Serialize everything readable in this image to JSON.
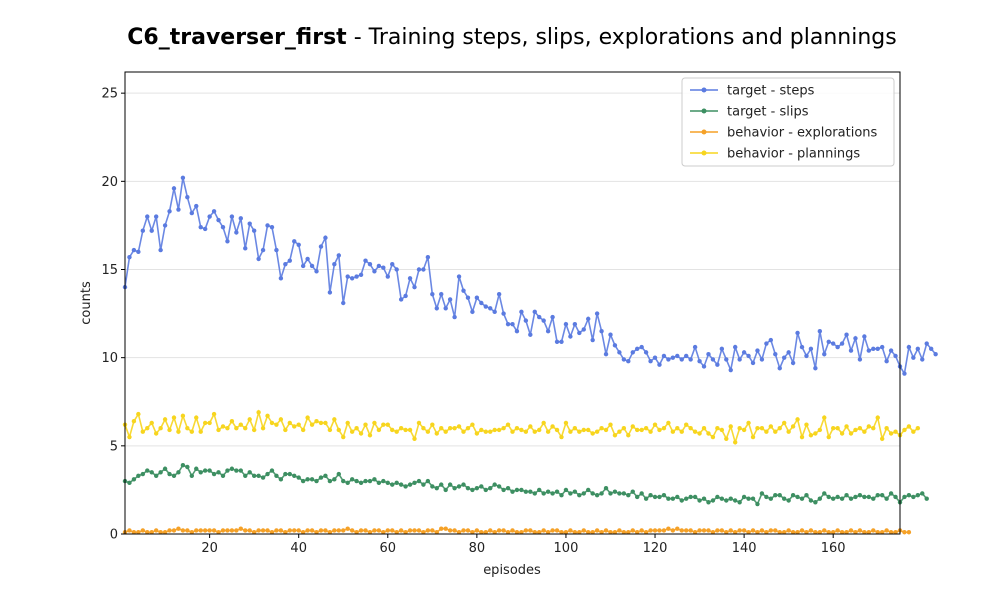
{
  "chart_data": {
    "type": "line",
    "title_bold": "C6_traverser_first",
    "title_rest": " - Training steps, slips, explorations and plannings",
    "xlabel": "episodes",
    "ylabel": "counts",
    "xlim": [
      1,
      175
    ],
    "ylim": [
      0,
      26.2
    ],
    "x_ticks": [
      20,
      40,
      60,
      80,
      100,
      120,
      140,
      160
    ],
    "y_ticks": [
      0,
      5,
      10,
      15,
      20,
      25
    ],
    "grid": "horizontal",
    "legend_position": "top-right",
    "series": [
      {
        "name": "target - steps",
        "color": "#5b7be0",
        "values": [
          14.0,
          15.7,
          16.1,
          16.0,
          17.2,
          18.0,
          17.2,
          18.0,
          16.1,
          17.5,
          18.3,
          19.6,
          18.4,
          20.2,
          19.1,
          18.2,
          18.6,
          17.4,
          17.3,
          18.0,
          18.3,
          17.8,
          17.4,
          16.6,
          18.0,
          17.1,
          17.9,
          16.2,
          17.6,
          17.2,
          15.6,
          16.1,
          17.5,
          17.4,
          16.1,
          14.5,
          15.3,
          15.5,
          16.6,
          16.4,
          15.2,
          15.6,
          15.2,
          14.9,
          16.3,
          16.8,
          13.7,
          15.3,
          15.8,
          13.1,
          14.6,
          14.5,
          14.6,
          14.7,
          15.5,
          15.3,
          14.9,
          15.2,
          15.1,
          14.6,
          15.3,
          15.0,
          13.3,
          13.5,
          14.5,
          14.0,
          15.0,
          15.0,
          15.7,
          13.6,
          12.8,
          13.6,
          12.8,
          13.3,
          12.3,
          14.6,
          13.8,
          13.4,
          12.6,
          13.4,
          13.1,
          12.9,
          12.8,
          12.6,
          13.6,
          12.5,
          11.9,
          11.9,
          11.5,
          12.6,
          12.1,
          11.3,
          12.6,
          12.3,
          12.1,
          11.5,
          12.3,
          10.9,
          10.9,
          11.9,
          11.2,
          11.9,
          11.4,
          11.6,
          12.2,
          11.0,
          12.5,
          11.5,
          10.2,
          11.3,
          10.7,
          10.3,
          9.9,
          9.8,
          10.3,
          10.5,
          10.6,
          10.3,
          9.8,
          10.0,
          9.6,
          10.1,
          9.9,
          10.0,
          10.1,
          9.9,
          10.1,
          9.9,
          10.6,
          9.8,
          9.5,
          10.2,
          9.9,
          9.6,
          10.5,
          9.9,
          9.3,
          10.6,
          9.9,
          10.3,
          10.1,
          9.7,
          10.4,
          9.9,
          10.8,
          11.0,
          10.2,
          9.4,
          10.0,
          10.3,
          9.7,
          11.4,
          10.6,
          10.1,
          10.5,
          9.4,
          11.5,
          10.2,
          10.9,
          10.8,
          10.6,
          10.8,
          11.3,
          10.4,
          11.1,
          9.9,
          11.2,
          10.4,
          10.5,
          10.5,
          10.6,
          9.8,
          10.4,
          10.1,
          9.5,
          9.1,
          10.6,
          10.0,
          10.5,
          9.9,
          10.8,
          10.5,
          10.2
        ]
      },
      {
        "name": "target - slips",
        "color": "#3d8f62",
        "values": [
          3.0,
          2.9,
          3.1,
          3.3,
          3.4,
          3.6,
          3.5,
          3.3,
          3.5,
          3.7,
          3.4,
          3.3,
          3.5,
          3.9,
          3.8,
          3.3,
          3.7,
          3.5,
          3.6,
          3.6,
          3.4,
          3.5,
          3.3,
          3.6,
          3.7,
          3.6,
          3.6,
          3.3,
          3.5,
          3.3,
          3.3,
          3.2,
          3.4,
          3.6,
          3.3,
          3.1,
          3.4,
          3.4,
          3.3,
          3.2,
          3.0,
          3.1,
          3.1,
          3.0,
          3.2,
          3.3,
          3.0,
          3.1,
          3.4,
          3.0,
          2.9,
          3.1,
          3.0,
          2.9,
          3.0,
          3.0,
          3.1,
          2.9,
          3.0,
          2.9,
          2.8,
          2.9,
          2.8,
          2.7,
          2.8,
          2.9,
          3.0,
          2.8,
          3.0,
          2.7,
          2.6,
          2.8,
          2.5,
          2.8,
          2.6,
          2.7,
          2.8,
          2.6,
          2.5,
          2.6,
          2.7,
          2.5,
          2.6,
          2.8,
          2.7,
          2.5,
          2.6,
          2.4,
          2.5,
          2.5,
          2.4,
          2.4,
          2.3,
          2.5,
          2.3,
          2.4,
          2.3,
          2.4,
          2.2,
          2.5,
          2.3,
          2.4,
          2.2,
          2.3,
          2.5,
          2.3,
          2.2,
          2.3,
          2.6,
          2.3,
          2.4,
          2.3,
          2.3,
          2.2,
          2.4,
          2.1,
          2.3,
          2.0,
          2.2,
          2.1,
          2.1,
          2.2,
          2.0,
          2.0,
          2.1,
          1.9,
          2.0,
          2.1,
          2.1,
          1.9,
          2.0,
          1.8,
          1.9,
          2.1,
          2.0,
          1.9,
          2.0,
          1.9,
          1.8,
          2.1,
          2.0,
          2.0,
          1.7,
          2.3,
          2.1,
          2.0,
          2.2,
          2.2,
          2.0,
          1.9,
          2.2,
          2.1,
          2.0,
          2.2,
          1.9,
          1.8,
          2.0,
          2.3,
          2.1,
          2.0,
          2.1,
          2.0,
          2.2,
          2.0,
          2.1,
          2.2,
          2.1,
          2.1,
          2.0,
          2.2,
          2.2,
          2.0,
          2.3,
          2.1,
          1.8,
          2.1,
          2.2,
          2.1,
          2.2,
          2.3,
          2.0
        ]
      },
      {
        "name": "behavior - explorations",
        "color": "#f5a127",
        "values": [
          0.1,
          0.2,
          0.1,
          0.1,
          0.2,
          0.1,
          0.1,
          0.2,
          0.1,
          0.1,
          0.2,
          0.2,
          0.3,
          0.2,
          0.2,
          0.1,
          0.2,
          0.2,
          0.2,
          0.2,
          0.2,
          0.1,
          0.2,
          0.2,
          0.2,
          0.2,
          0.3,
          0.2,
          0.2,
          0.1,
          0.2,
          0.2,
          0.2,
          0.1,
          0.2,
          0.2,
          0.1,
          0.2,
          0.2,
          0.2,
          0.1,
          0.2,
          0.2,
          0.1,
          0.2,
          0.2,
          0.1,
          0.2,
          0.2,
          0.2,
          0.3,
          0.2,
          0.1,
          0.2,
          0.2,
          0.1,
          0.2,
          0.2,
          0.1,
          0.2,
          0.2,
          0.1,
          0.2,
          0.1,
          0.2,
          0.2,
          0.2,
          0.1,
          0.2,
          0.2,
          0.1,
          0.3,
          0.3,
          0.2,
          0.2,
          0.1,
          0.2,
          0.2,
          0.1,
          0.2,
          0.1,
          0.1,
          0.2,
          0.1,
          0.2,
          0.2,
          0.1,
          0.2,
          0.1,
          0.1,
          0.2,
          0.2,
          0.1,
          0.1,
          0.2,
          0.1,
          0.2,
          0.2,
          0.1,
          0.1,
          0.2,
          0.1,
          0.1,
          0.2,
          0.1,
          0.1,
          0.2,
          0.1,
          0.2,
          0.1,
          0.1,
          0.2,
          0.1,
          0.1,
          0.2,
          0.1,
          0.2,
          0.1,
          0.2,
          0.2,
          0.2,
          0.2,
          0.3,
          0.2,
          0.3,
          0.2,
          0.2,
          0.2,
          0.1,
          0.2,
          0.2,
          0.2,
          0.1,
          0.2,
          0.2,
          0.1,
          0.2,
          0.1,
          0.2,
          0.2,
          0.1,
          0.2,
          0.1,
          0.2,
          0.1,
          0.2,
          0.2,
          0.1,
          0.1,
          0.2,
          0.1,
          0.1,
          0.2,
          0.1,
          0.2,
          0.1,
          0.1,
          0.2,
          0.1,
          0.1,
          0.2,
          0.1,
          0.1,
          0.2,
          0.1,
          0.2,
          0.1,
          0.1,
          0.2,
          0.1,
          0.1,
          0.2,
          0.1,
          0.1,
          0.2,
          0.1,
          0.1
        ]
      },
      {
        "name": "behavior - plannings",
        "color": "#f7d51e",
        "values": [
          6.2,
          5.5,
          6.4,
          6.8,
          5.8,
          6.0,
          6.3,
          5.7,
          6.0,
          6.5,
          5.9,
          6.6,
          5.8,
          6.7,
          6.0,
          5.8,
          6.6,
          5.8,
          6.3,
          6.3,
          6.8,
          5.9,
          6.1,
          6.0,
          6.4,
          6.0,
          6.2,
          6.0,
          6.5,
          5.9,
          6.9,
          6.0,
          6.7,
          6.3,
          6.2,
          6.5,
          5.9,
          6.3,
          6.1,
          6.2,
          5.9,
          6.6,
          6.2,
          6.4,
          6.3,
          6.3,
          5.9,
          6.5,
          5.9,
          5.5,
          6.3,
          5.8,
          6.0,
          5.7,
          6.2,
          5.6,
          6.3,
          5.9,
          6.2,
          6.2,
          5.9,
          5.8,
          6.0,
          5.9,
          5.9,
          5.4,
          6.3,
          6.0,
          5.8,
          6.2,
          5.7,
          6.0,
          5.8,
          6.0,
          6.0,
          6.1,
          5.8,
          6.0,
          6.2,
          5.7,
          5.9,
          5.8,
          5.8,
          5.9,
          5.9,
          6.0,
          6.2,
          5.8,
          6.0,
          5.9,
          5.8,
          6.1,
          5.8,
          5.9,
          6.3,
          5.8,
          6.1,
          5.9,
          5.5,
          6.3,
          5.8,
          6.0,
          5.8,
          5.9,
          5.9,
          5.7,
          5.8,
          6.0,
          5.9,
          6.2,
          5.6,
          5.8,
          6.0,
          5.6,
          6.1,
          5.9,
          5.9,
          6.0,
          5.8,
          6.2,
          5.9,
          6.0,
          6.3,
          5.8,
          6.0,
          5.8,
          6.2,
          6.0,
          5.8,
          5.7,
          6.0,
          5.7,
          5.5,
          6.0,
          5.9,
          5.4,
          6.1,
          5.2,
          6.0,
          5.9,
          6.3,
          5.5,
          6.0,
          6.0,
          5.8,
          6.1,
          5.8,
          6.0,
          6.3,
          5.8,
          6.1,
          6.5,
          5.5,
          6.2,
          5.6,
          5.7,
          5.9,
          6.6,
          5.5,
          6.0,
          6.0,
          5.7,
          6.1,
          5.7,
          5.9,
          6.0,
          5.8,
          6.1,
          6.0,
          6.6,
          5.4,
          6.0,
          5.7,
          5.8,
          5.6,
          5.9,
          6.1,
          5.8,
          6.0
        ]
      }
    ]
  }
}
